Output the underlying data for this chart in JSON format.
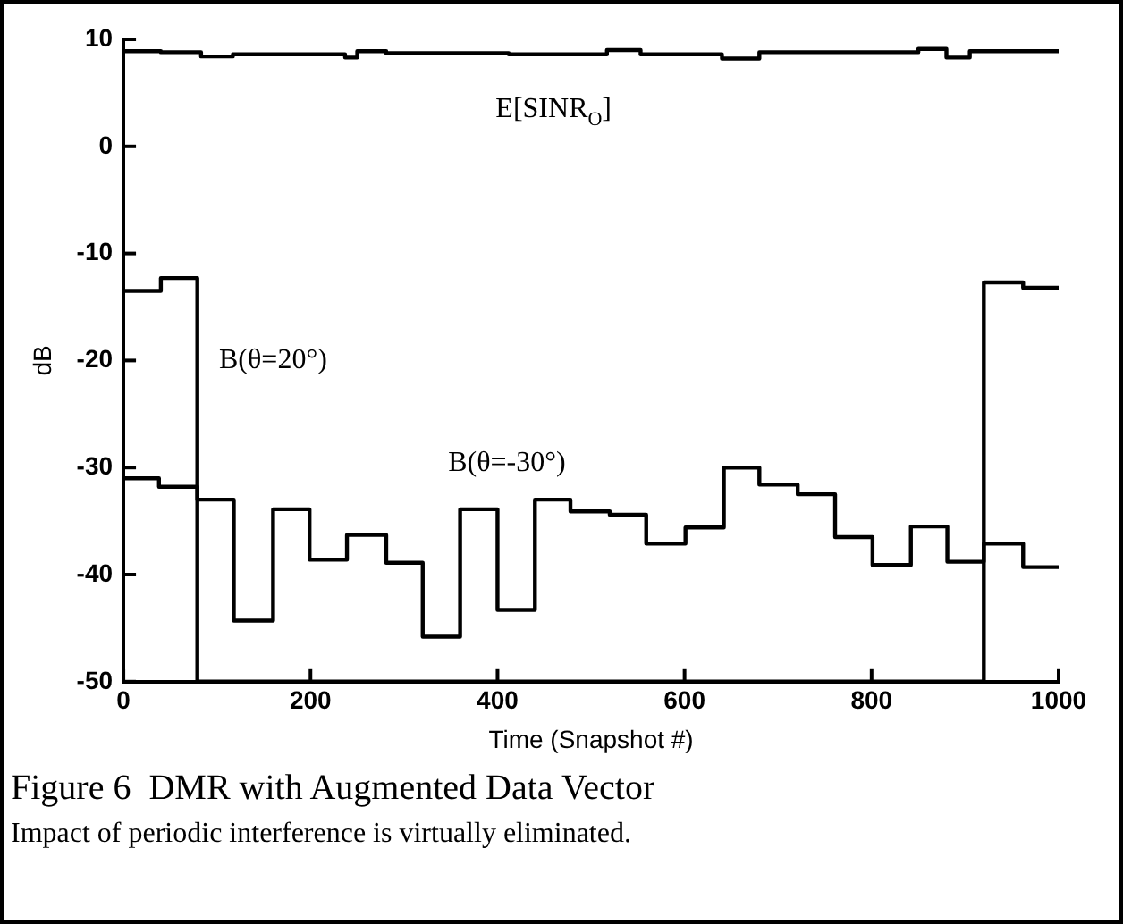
{
  "chart_data": {
    "type": "step",
    "xlabel": "Time (Snapshot #)",
    "ylabel": "dB",
    "xlim": [
      0,
      1000
    ],
    "xticks": [
      0,
      200,
      400,
      600,
      800,
      1000
    ],
    "ylim": [
      -50,
      10
    ],
    "yticks": [
      -50,
      -40,
      -30,
      -20,
      -10,
      0,
      10
    ],
    "grid": false,
    "legend": false,
    "series": [
      {
        "name": "E[SINR$_{O}$]",
        "color": "#000000",
        "x": [
          0,
          40,
          83,
          117,
          237,
          250,
          281,
          412,
          517,
          553,
          640,
          680,
          850,
          880,
          905,
          1000
        ],
        "values": [
          8.9,
          8.8,
          8.4,
          8.6,
          8.3,
          8.9,
          8.7,
          8.6,
          9.0,
          8.6,
          8.2,
          8.8,
          9.1,
          8.3,
          8.9,
          8.9
        ]
      },
      {
        "name": "B(θ=20°)",
        "color": "#000000",
        "x": [
          0,
          40,
          79,
          920,
          962,
          1000
        ],
        "values": [
          -13.5,
          -12.3,
          -50,
          -12.7,
          -13.2,
          -13.2
        ]
      },
      {
        "name": "B(θ=-30°)",
        "color": "#000000",
        "x": [
          0,
          38,
          79,
          118,
          160,
          199,
          239,
          281,
          320,
          360,
          400,
          440,
          478,
          520,
          559,
          601,
          642,
          680,
          721,
          761,
          801,
          842,
          881,
          920,
          962,
          1000
        ],
        "values": [
          -31.0,
          -31.8,
          -33.0,
          -44.3,
          -33.9,
          -38.6,
          -36.3,
          -38.9,
          -45.8,
          -33.9,
          -43.3,
          -33.0,
          -34.1,
          -34.4,
          -37.1,
          -35.6,
          -30.0,
          -31.6,
          -32.5,
          -36.5,
          -39.1,
          -35.5,
          -38.8,
          -37.1,
          -39.3,
          -39.3
        ]
      }
    ],
    "annotations": [
      "Figure 6  DMR with Augmented Data Vector",
      "Impact of periodic interference is virtually eliminated."
    ]
  }
}
